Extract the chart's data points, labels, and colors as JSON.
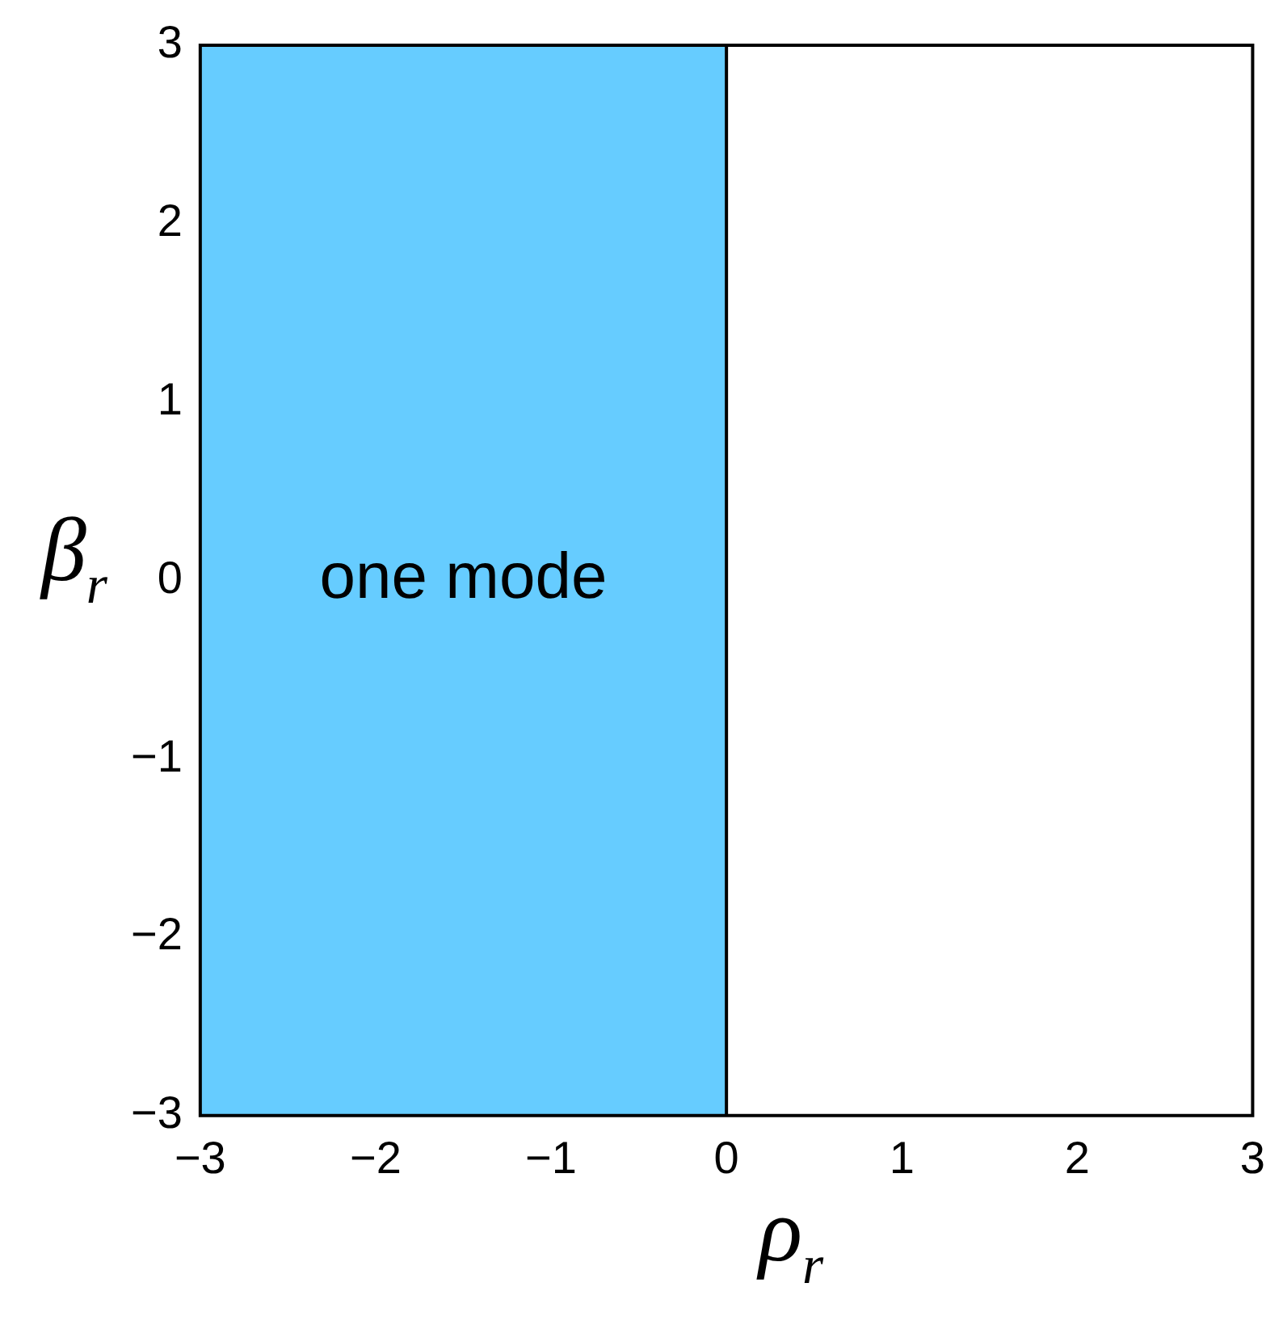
{
  "chart_data": {
    "type": "area",
    "xlabel": "ρ$_{r}$",
    "ylabel": "β$_{r}$",
    "xlim": [
      -3,
      3
    ],
    "ylim": [
      -3,
      3
    ],
    "xticks": [
      -3,
      -2,
      -1,
      0,
      1,
      2,
      3
    ],
    "yticks": [
      -3,
      -2,
      -1,
      0,
      1,
      2,
      3
    ],
    "bands": [
      {
        "axis": "x",
        "from": -3,
        "to": 0,
        "label": "one mode",
        "color": "#66ccff"
      }
    ],
    "ref_lines": [
      {
        "axis": "x",
        "value": 0,
        "color": "#000000"
      }
    ]
  }
}
